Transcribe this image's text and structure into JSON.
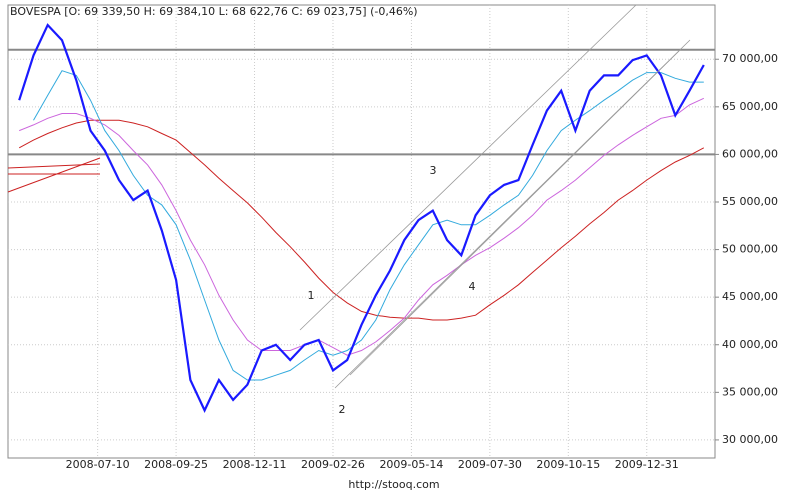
{
  "chart_data": {
    "type": "line",
    "title": "BOVESPA [O: 69 339,50  H: 69 384,10  L: 68 622,76  C: 69 023,75] (-0,46%)",
    "footer": "http://stooq.com",
    "annotations": [
      "1",
      "2",
      "3",
      "4"
    ],
    "x": [
      "2008-04-24",
      "2008-05-08",
      "2008-05-22",
      "2008-06-05",
      "2008-06-19",
      "2008-07-03",
      "2008-07-17",
      "2008-07-31",
      "2008-08-14",
      "2008-08-28",
      "2008-09-11",
      "2008-09-25",
      "2008-10-09",
      "2008-10-23",
      "2008-11-06",
      "2008-11-20",
      "2008-12-04",
      "2008-12-18",
      "2009-01-01",
      "2009-01-15",
      "2009-01-29",
      "2009-02-12",
      "2009-02-26",
      "2009-03-12",
      "2009-03-26",
      "2009-04-09",
      "2009-04-23",
      "2009-05-07",
      "2009-05-21",
      "2009-06-04",
      "2009-06-18",
      "2009-07-02",
      "2009-07-16",
      "2009-07-30",
      "2009-08-13",
      "2009-08-27",
      "2009-09-10",
      "2009-09-24",
      "2009-10-08",
      "2009-10-22",
      "2009-11-05",
      "2009-11-19",
      "2009-12-03",
      "2009-12-17",
      "2009-12-31",
      "2010-01-14",
      "2010-01-28",
      "2010-02-11",
      "2010-02-25"
    ],
    "series": [
      {
        "color": "#1a1aff",
        "width": 2.2,
        "values": [
          65700,
          70400,
          73600,
          72000,
          67800,
          62500,
          60400,
          57300,
          55200,
          56200,
          52000,
          46800,
          36300,
          33100,
          36300,
          34200,
          35800,
          39400,
          40000,
          38400,
          40000,
          40500,
          37300,
          38400,
          42100,
          45200,
          47800,
          51000,
          53100,
          54100,
          51000,
          49400,
          53600,
          55700,
          56800,
          57300,
          61000,
          64600,
          66700,
          62500,
          66700,
          68300,
          68300,
          69900,
          70400,
          68300,
          64100,
          66700,
          69400
        ]
      },
      {
        "color": "#33aadd",
        "width": 1,
        "values": [
          null,
          63600,
          66200,
          68800,
          68300,
          65700,
          62500,
          60400,
          57800,
          55700,
          54700,
          52600,
          48900,
          44700,
          40500,
          37300,
          36300,
          36300,
          36800,
          37300,
          38400,
          39400,
          38900,
          39400,
          40500,
          42600,
          45800,
          48400,
          50500,
          52600,
          53100,
          52600,
          52600,
          53600,
          54700,
          55700,
          57800,
          60400,
          62500,
          63600,
          64600,
          65700,
          66700,
          67800,
          68600,
          68600,
          68000,
          67600,
          67600
        ]
      },
      {
        "color": "#cc66dd",
        "width": 1,
        "values": [
          62500,
          63100,
          63800,
          64300,
          64300,
          63800,
          63100,
          62000,
          60400,
          58900,
          56800,
          54100,
          51000,
          48400,
          45200,
          42600,
          40500,
          39400,
          39400,
          39400,
          40000,
          40500,
          39700,
          38900,
          39400,
          40300,
          41500,
          42800,
          44700,
          46300,
          47300,
          48400,
          49400,
          50200,
          51200,
          52300,
          53600,
          55200,
          56200,
          57300,
          58600,
          59900,
          61000,
          62000,
          62900,
          63800,
          64100,
          65200,
          65900
        ]
      },
      {
        "color": "#cc2222",
        "width": 1,
        "values": [
          60700,
          61500,
          62200,
          62800,
          63300,
          63600,
          63600,
          63600,
          63300,
          62900,
          62200,
          61500,
          60200,
          58900,
          57500,
          56200,
          54900,
          53400,
          51800,
          50300,
          48700,
          47000,
          45500,
          44400,
          43500,
          43100,
          42900,
          42800,
          42800,
          42600,
          42600,
          42800,
          43100,
          44200,
          45200,
          46300,
          47600,
          48900,
          50200,
          51400,
          52700,
          53900,
          55200,
          56200,
          57300,
          58300,
          59200,
          59900,
          60700
        ]
      }
    ],
    "hlines": [
      71000,
      60000
    ],
    "xlim": [
      "2008-04-13",
      "2010-03-08"
    ],
    "xticks": [
      "2008-07-10",
      "2008-09-25",
      "2008-12-11",
      "2009-02-26",
      "2009-05-14",
      "2009-07-30",
      "2009-10-15",
      "2009-12-31"
    ],
    "ylim": [
      28100,
      75700
    ],
    "yticks": [
      {
        "value": 30000,
        "label": "30 000,00"
      },
      {
        "value": 35000,
        "label": "35 000,00"
      },
      {
        "value": 40000,
        "label": "40 000,00"
      },
      {
        "value": 45000,
        "label": "45 000,00"
      },
      {
        "value": 50000,
        "label": "50 000,00"
      },
      {
        "value": 55000,
        "label": "55 000,00"
      },
      {
        "value": 60000,
        "label": "60 000,00"
      },
      {
        "value": 65000,
        "label": "65 000,00"
      },
      {
        "value": 70000,
        "label": "70 000,00"
      }
    ],
    "grid": true
  }
}
